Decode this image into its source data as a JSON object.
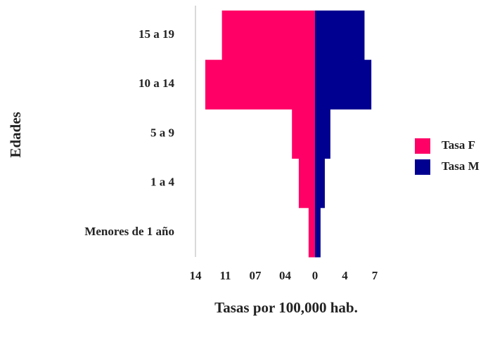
{
  "chart_data": {
    "type": "pyramid",
    "y_label": "Edades",
    "x_label": "Tasas por 100,000 hab.",
    "categories": [
      "15 a 19",
      "10 a 14",
      "5  a 9",
      "1 a 4",
      "Menores de 1 año"
    ],
    "series": [
      {
        "name": "Tasa F",
        "color": "#ff0066",
        "side": "left",
        "values": [
          10.9,
          12.85,
          2.7,
          1.9,
          0.75
        ]
      },
      {
        "name": "Tasa M",
        "color": "#000090",
        "side": "right",
        "values": [
          5.8,
          6.6,
          1.8,
          1.15,
          0.65
        ]
      }
    ],
    "xlim": [
      -14,
      7
    ],
    "xticks": [
      {
        "value": -14,
        "label": "14"
      },
      {
        "value": -10.5,
        "label": "11"
      },
      {
        "value": -7,
        "label": "07"
      },
      {
        "value": -3.5,
        "label": "04"
      },
      0,
      {
        "value": 3.5,
        "label": "4"
      },
      7
    ],
    "legend": "right"
  }
}
